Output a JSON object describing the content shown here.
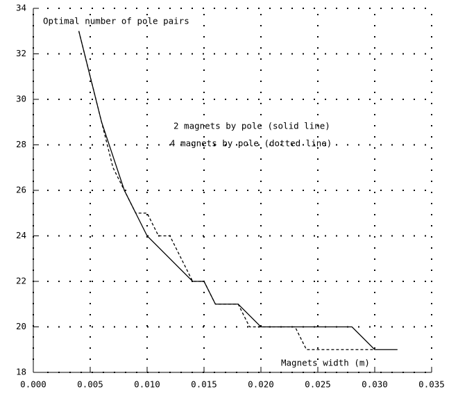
{
  "chart_data": {
    "type": "line",
    "annotations": [
      "Optimal number of pole pairs",
      "2 magnets by pole (solid line)",
      "4 magnets by pole (dotted line)",
      "Magnets width (m)"
    ],
    "series": [
      {
        "color": "#000000",
        "style": "solid",
        "x": [
          0.004,
          0.006,
          0.008,
          0.01,
          0.014,
          0.015,
          0.016,
          0.018,
          0.02,
          0.028,
          0.03,
          0.032
        ],
        "values": [
          33,
          29,
          26,
          24,
          22,
          22,
          21,
          21,
          20,
          20,
          19,
          19
        ]
      },
      {
        "color": "#000000",
        "style": "dashed",
        "x": [
          0.004,
          0.006,
          0.0065,
          0.007,
          0.008,
          0.009,
          0.01,
          0.011,
          0.012,
          0.014,
          0.015,
          0.016,
          0.018,
          0.019,
          0.023,
          0.024,
          0.03
        ],
        "values": [
          33,
          29,
          28,
          27,
          26,
          25,
          25,
          24,
          24,
          22,
          22,
          21,
          21,
          20,
          20,
          19,
          19
        ]
      }
    ],
    "xlim": [
      0,
      0.035
    ],
    "xticks": [
      {
        "value": 0,
        "label": "0.000"
      },
      {
        "value": 0.005,
        "label": "0.005"
      },
      {
        "value": 0.01,
        "label": "0.010"
      },
      {
        "value": 0.015,
        "label": "0.015"
      },
      {
        "value": 0.02,
        "label": "0.020"
      },
      {
        "value": 0.025,
        "label": "0.025"
      },
      {
        "value": 0.03,
        "label": "0.030"
      },
      {
        "value": 0.035,
        "label": "0.035"
      }
    ],
    "ylim": [
      18,
      34
    ],
    "yticks": [
      18,
      20,
      22,
      24,
      26,
      28,
      30,
      32,
      34
    ],
    "grid": true
  }
}
